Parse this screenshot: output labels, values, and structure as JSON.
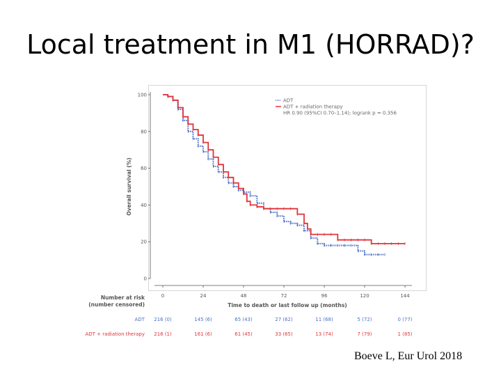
{
  "slide": {
    "title": "Local treatment in M1 (HORRAD)?",
    "citation": "Boeve L, Eur Urol 2018"
  },
  "chart_data": {
    "type": "line",
    "subtype": "kaplan-meier",
    "ylabel": "Overall survival (%)",
    "xlabel": "Time to death or last follow up (months)",
    "xlim": [
      0,
      150
    ],
    "ylim": [
      0,
      100
    ],
    "xticks": [
      0,
      24,
      48,
      72,
      96,
      120,
      144
    ],
    "yticks": [
      0,
      20,
      40,
      60,
      80,
      100
    ],
    "legend": {
      "position": "top-right",
      "entries": [
        "ADT",
        "ADT + radiation therapy"
      ],
      "stat": "HR 0.90 (95%CI 0.70–1.14); logrank p = 0.356"
    },
    "series": [
      {
        "name": "ADT",
        "color": "#4a6fc8",
        "style": "dotted",
        "x": [
          0,
          3,
          6,
          9,
          12,
          15,
          18,
          21,
          24,
          27,
          30,
          33,
          36,
          39,
          42,
          45,
          48,
          52,
          56,
          60,
          64,
          68,
          72,
          76,
          80,
          84,
          88,
          92,
          96,
          100,
          104,
          108,
          112,
          116,
          120,
          124,
          128,
          132
        ],
        "y": [
          100,
          99,
          97,
          92,
          86,
          80,
          76,
          72,
          69,
          65,
          61,
          58,
          55,
          52,
          50,
          48,
          47,
          45,
          41,
          38,
          36,
          34,
          31,
          30,
          29,
          26,
          22,
          19,
          18,
          18,
          18,
          18,
          18,
          15,
          13,
          13,
          13,
          13
        ]
      },
      {
        "name": "ADT + radiation therapy",
        "color": "#e0343b",
        "style": "solid",
        "x": [
          0,
          3,
          6,
          9,
          12,
          15,
          18,
          21,
          24,
          27,
          30,
          33,
          36,
          39,
          42,
          45,
          48,
          50,
          52,
          56,
          60,
          64,
          68,
          72,
          76,
          80,
          84,
          86,
          88,
          92,
          96,
          100,
          104,
          108,
          112,
          116,
          120,
          124,
          128,
          132,
          136,
          140,
          144
        ],
        "y": [
          100,
          99,
          97,
          93,
          88,
          84,
          81,
          78,
          74,
          70,
          66,
          62,
          58,
          55,
          52,
          49,
          46,
          42,
          40,
          39,
          38,
          38,
          38,
          38,
          38,
          35,
          30,
          27,
          24,
          24,
          24,
          24,
          21,
          21,
          21,
          21,
          21,
          19,
          19,
          19,
          19,
          19,
          19
        ]
      }
    ],
    "risk_table": {
      "header_line1": "Number at risk",
      "header_line2": "(number censored)",
      "rows": [
        {
          "label": "ADT",
          "color": "#4a6fc8",
          "values": [
            "216 (0)",
            "145 (6)",
            "65 (43)",
            "27 (62)",
            "11 (68)",
            "5 (72)",
            "0 (77)"
          ]
        },
        {
          "label": "ADT + radiation therapy",
          "color": "#e0343b",
          "values": [
            "216 (1)",
            "161 (6)",
            "61 (45)",
            "33 (65)",
            "13 (74)",
            "7 (79)",
            "1 (85)"
          ]
        }
      ]
    }
  }
}
